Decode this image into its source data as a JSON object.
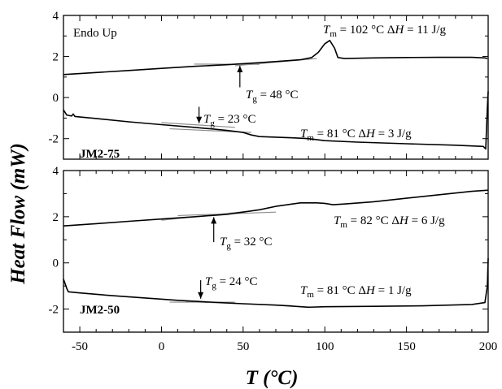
{
  "figure": {
    "ylabel": "Heat Flow (mW)",
    "xlabel": "T (°C)"
  },
  "chart_data": [
    {
      "type": "line",
      "panel": "top",
      "sample_label": "JM2-75",
      "corner_label": "Endo Up",
      "xlim": [
        -60,
        200
      ],
      "ylim": [
        -3,
        4
      ],
      "yticks": [
        -2,
        0,
        2,
        4
      ],
      "xticks": [
        -50,
        0,
        50,
        100,
        150,
        200
      ],
      "series": [
        {
          "curve": "heating",
          "points": [
            [
              -60,
              1.12
            ],
            [
              -40,
              1.22
            ],
            [
              -20,
              1.32
            ],
            [
              0,
              1.42
            ],
            [
              20,
              1.52
            ],
            [
              40,
              1.6
            ],
            [
              60,
              1.7
            ],
            [
              75,
              1.78
            ],
            [
              85,
              1.84
            ],
            [
              92,
              1.95
            ],
            [
              96,
              2.2
            ],
            [
              100,
              2.62
            ],
            [
              103,
              2.78
            ],
            [
              106,
              2.4
            ],
            [
              108,
              1.95
            ],
            [
              112,
              1.9
            ],
            [
              130,
              1.93
            ],
            [
              150,
              1.95
            ],
            [
              170,
              1.96
            ],
            [
              190,
              1.96
            ],
            [
              198,
              1.93
            ],
            [
              199.5,
              1.9
            ]
          ]
        },
        {
          "curve": "cooling",
          "points": [
            [
              -60,
              -0.6
            ],
            [
              -58,
              -0.85
            ],
            [
              -55,
              -0.9
            ],
            [
              -54,
              -0.8
            ],
            [
              -53,
              -0.92
            ],
            [
              -40,
              -1.02
            ],
            [
              -20,
              -1.18
            ],
            [
              0,
              -1.32
            ],
            [
              20,
              -1.45
            ],
            [
              30,
              -1.52
            ],
            [
              40,
              -1.6
            ],
            [
              50,
              -1.7
            ],
            [
              55,
              -1.82
            ],
            [
              60,
              -1.9
            ],
            [
              70,
              -1.93
            ],
            [
              80,
              -1.96
            ],
            [
              90,
              -2.0
            ],
            [
              100,
              -2.1
            ],
            [
              120,
              -2.17
            ],
            [
              150,
              -2.25
            ],
            [
              180,
              -2.32
            ],
            [
              197,
              -2.38
            ],
            [
              198.5,
              -2.5
            ],
            [
              199.5,
              -0.5
            ],
            [
              200,
              0.3
            ]
          ]
        }
      ],
      "tangent_lines": [
        [
          [
            20,
            1.63
          ],
          [
            60,
            1.62
          ]
        ],
        [
          [
            45,
            1.55
          ],
          [
            95,
            1.9
          ]
        ],
        [
          [
            0,
            -1.22
          ],
          [
            45,
            -1.45
          ]
        ],
        [
          [
            5,
            -1.52
          ],
          [
            55,
            -1.7
          ]
        ]
      ],
      "annotations": [
        {
          "text": "Tm = 102 °C   ΔH = 11 J/g",
          "symbol": "T",
          "sub": "m",
          "rest": " = 102 °C   ",
          "delta": "Δ",
          "H": "H",
          "value": " = 11 J/g"
        },
        {
          "text": "Tg = 48 °C",
          "symbol": "T",
          "sub": "g",
          "rest": " = 48 °C",
          "arrow_x": 48,
          "arrow_from": 0.5,
          "arrow_to": 1.55
        },
        {
          "text": "Tg = 23 °C",
          "symbol": "T",
          "sub": "g",
          "rest": " = 23 °C",
          "arrow_x": 23,
          "arrow_from": -0.45,
          "arrow_to": -1.25
        },
        {
          "text": "Tm = 81 °C   ΔH = 3 J/g",
          "symbol": "T",
          "sub": "m",
          "rest": " = 81 °C   ",
          "delta": "Δ",
          "H": "H",
          "value": " = 3 J/g"
        }
      ]
    },
    {
      "type": "line",
      "panel": "bottom",
      "sample_label": "JM2-50",
      "xlim": [
        -60,
        200
      ],
      "ylim": [
        -3,
        4
      ],
      "yticks": [
        -2,
        0,
        2,
        4
      ],
      "xticks": [
        -50,
        0,
        50,
        100,
        150,
        200
      ],
      "series": [
        {
          "curve": "heating",
          "points": [
            [
              -60,
              1.6
            ],
            [
              -40,
              1.7
            ],
            [
              -20,
              1.8
            ],
            [
              0,
              1.9
            ],
            [
              20,
              2.0
            ],
            [
              30,
              2.05
            ],
            [
              40,
              2.1
            ],
            [
              60,
              2.3
            ],
            [
              70,
              2.45
            ],
            [
              85,
              2.6
            ],
            [
              95,
              2.6
            ],
            [
              100,
              2.58
            ],
            [
              105,
              2.52
            ],
            [
              112,
              2.55
            ],
            [
              130,
              2.65
            ],
            [
              150,
              2.8
            ],
            [
              170,
              2.95
            ],
            [
              190,
              3.1
            ],
            [
              200,
              3.15
            ]
          ]
        },
        {
          "curve": "cooling",
          "points": [
            [
              -60,
              -0.7
            ],
            [
              -58,
              -1.1
            ],
            [
              -57,
              -1.25
            ],
            [
              -50,
              -1.3
            ],
            [
              -30,
              -1.42
            ],
            [
              -10,
              -1.52
            ],
            [
              10,
              -1.62
            ],
            [
              30,
              -1.7
            ],
            [
              50,
              -1.77
            ],
            [
              70,
              -1.83
            ],
            [
              80,
              -1.87
            ],
            [
              90,
              -1.92
            ],
            [
              100,
              -1.9
            ],
            [
              130,
              -1.88
            ],
            [
              160,
              -1.86
            ],
            [
              190,
              -1.8
            ],
            [
              198,
              -1.72
            ],
            [
              199.5,
              -1.0
            ],
            [
              200,
              0.2
            ]
          ]
        }
      ],
      "tangent_lines": [
        [
          [
            10,
            2.05
          ],
          [
            70,
            2.2
          ]
        ],
        [
          [
            0,
            1.85
          ],
          [
            55,
            2.25
          ]
        ],
        [
          [
            5,
            -1.7
          ],
          [
            45,
            -1.7
          ]
        ],
        [
          [
            15,
            -1.68
          ],
          [
            80,
            -1.85
          ]
        ]
      ],
      "annotations": [
        {
          "text": "Tm = 82 °C   ΔH = 6 J/g",
          "symbol": "T",
          "sub": "m",
          "rest": " = 82 °C   ",
          "delta": "Δ",
          "H": "H",
          "value": " = 6 J/g"
        },
        {
          "text": "Tg = 32 °C",
          "symbol": "T",
          "sub": "g",
          "rest": " = 32 °C",
          "arrow_x": 32,
          "arrow_from": 0.9,
          "arrow_to": 1.98
        },
        {
          "text": "Tg = 24 °C",
          "symbol": "T",
          "sub": "g",
          "rest": " = 24 °C",
          "arrow_x": 24,
          "arrow_from": -0.75,
          "arrow_to": -1.55
        },
        {
          "text": "Tm = 81 °C   ΔH = 1 J/g",
          "symbol": "T",
          "sub": "m",
          "rest": " = 81 °C   ",
          "delta": "Δ",
          "H": "H",
          "value": " = 1 J/g"
        }
      ]
    }
  ]
}
